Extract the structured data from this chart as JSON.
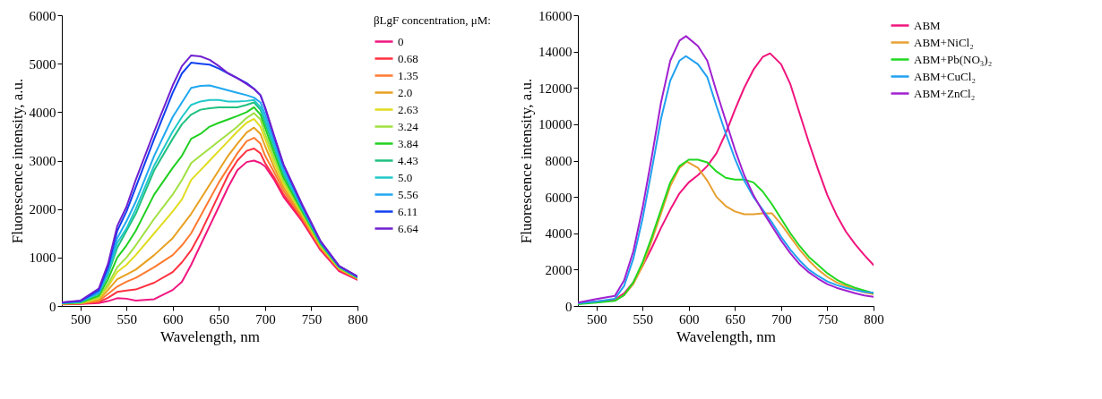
{
  "chart_data": [
    {
      "type": "line",
      "xlabel": "Wavelength, nm",
      "ylabel": "Fluorescence intensity, a.u.",
      "legend_title": "βLgF concentration, μM:",
      "legend": "top right",
      "xlim": [
        480,
        800
      ],
      "ylim": [
        0,
        6000
      ],
      "xticks": [
        500,
        550,
        600,
        650,
        700,
        750,
        800
      ],
      "yticks": [
        0,
        1000,
        2000,
        3000,
        4000,
        5000,
        6000
      ],
      "x": [
        480,
        500,
        520,
        530,
        540,
        550,
        560,
        580,
        600,
        610,
        620,
        630,
        640,
        650,
        660,
        670,
        680,
        688,
        695,
        700,
        710,
        720,
        740,
        760,
        780,
        800
      ],
      "series": [
        {
          "name": "0",
          "color": "#f0157f",
          "values": [
            30,
            40,
            60,
            100,
            160,
            150,
            110,
            140,
            330,
            500,
            850,
            1250,
            1650,
            2050,
            2450,
            2800,
            2970,
            3000,
            2950,
            2880,
            2600,
            2250,
            1750,
            1150,
            720,
            540
          ]
        },
        {
          "name": "0.68",
          "color": "#ff3040",
          "values": [
            35,
            45,
            80,
            170,
            290,
            320,
            340,
            480,
            700,
            900,
            1150,
            1500,
            1900,
            2300,
            2700,
            3000,
            3200,
            3250,
            3150,
            2950,
            2650,
            2300,
            1780,
            1170,
            740,
            550
          ]
        },
        {
          "name": "1.35",
          "color": "#ff7a30",
          "values": [
            40,
            50,
            100,
            250,
            400,
            500,
            580,
            800,
            1050,
            1250,
            1500,
            1850,
            2200,
            2550,
            2850,
            3150,
            3400,
            3470,
            3350,
            3100,
            2750,
            2380,
            1820,
            1200,
            760,
            560
          ]
        },
        {
          "name": "2.0",
          "color": "#e8a020",
          "values": [
            45,
            55,
            130,
            330,
            550,
            650,
            750,
            1050,
            1400,
            1650,
            1900,
            2200,
            2500,
            2800,
            3100,
            3350,
            3580,
            3680,
            3550,
            3300,
            2850,
            2450,
            1860,
            1220,
            770,
            570
          ]
        },
        {
          "name": "2.63",
          "color": "#e0dc20",
          "values": [
            50,
            60,
            160,
            400,
            700,
            850,
            1050,
            1500,
            1950,
            2200,
            2600,
            2800,
            3000,
            3200,
            3400,
            3600,
            3780,
            3860,
            3700,
            3450,
            2950,
            2520,
            1900,
            1240,
            780,
            575
          ]
        },
        {
          "name": "3.24",
          "color": "#a0e040",
          "values": [
            50,
            65,
            180,
            450,
            800,
            1000,
            1250,
            1800,
            2300,
            2600,
            2950,
            3100,
            3250,
            3400,
            3550,
            3700,
            3880,
            3980,
            3850,
            3550,
            3050,
            2580,
            1930,
            1260,
            790,
            580
          ]
        },
        {
          "name": "3.84",
          "color": "#20d020",
          "values": [
            55,
            70,
            210,
            550,
            1000,
            1250,
            1550,
            2300,
            2850,
            3100,
            3450,
            3550,
            3700,
            3780,
            3850,
            3920,
            4000,
            4100,
            3950,
            3680,
            3150,
            2650,
            1960,
            1280,
            800,
            585
          ]
        },
        {
          "name": "4.43",
          "color": "#20c080",
          "values": [
            60,
            80,
            250,
            650,
            1200,
            1550,
            1900,
            2800,
            3450,
            3750,
            3950,
            4050,
            4080,
            4100,
            4100,
            4100,
            4150,
            4200,
            4050,
            3780,
            3250,
            2720,
            2000,
            1300,
            810,
            590
          ]
        },
        {
          "name": "5.0",
          "color": "#20c8c8",
          "values": [
            60,
            85,
            260,
            680,
            1300,
            1600,
            2000,
            2900,
            3600,
            3900,
            4150,
            4220,
            4250,
            4250,
            4220,
            4220,
            4230,
            4250,
            4100,
            3850,
            3300,
            2760,
            2020,
            1310,
            815,
            595
          ]
        },
        {
          "name": "5.56",
          "color": "#20a8f0",
          "values": [
            65,
            90,
            280,
            730,
            1400,
            1750,
            2150,
            3100,
            3900,
            4200,
            4500,
            4540,
            4550,
            4500,
            4450,
            4400,
            4350,
            4300,
            4200,
            3950,
            3380,
            2820,
            2050,
            1320,
            820,
            600
          ]
        },
        {
          "name": "6.11",
          "color": "#1040f0",
          "values": [
            70,
            100,
            320,
            800,
            1550,
            1950,
            2450,
            3450,
            4400,
            4800,
            5020,
            5000,
            4980,
            4900,
            4800,
            4700,
            4600,
            4480,
            4350,
            4080,
            3480,
            2900,
            2080,
            1330,
            825,
            605
          ]
        },
        {
          "name": "6.64",
          "color": "#7020d0",
          "values": [
            75,
            110,
            360,
            870,
            1650,
            2050,
            2600,
            3600,
            4550,
            4950,
            5170,
            5150,
            5080,
            4950,
            4800,
            4700,
            4580,
            4480,
            4350,
            4100,
            3500,
            2920,
            2100,
            1340,
            830,
            610
          ]
        }
      ]
    },
    {
      "type": "line",
      "xlabel": "Wavelength, nm",
      "ylabel": "Fluorescence intensity, a.u.",
      "legend": "top right",
      "xlim": [
        480,
        800
      ],
      "ylim": [
        0,
        16000
      ],
      "xticks": [
        500,
        550,
        600,
        650,
        700,
        750,
        800
      ],
      "yticks": [
        0,
        2000,
        4000,
        6000,
        8000,
        10000,
        12000,
        14000,
        16000
      ],
      "series": [
        {
          "name": "ABM",
          "color": "#f0147c",
          "x": [
            480,
            500,
            520,
            530,
            540,
            550,
            560,
            570,
            580,
            590,
            600,
            610,
            620,
            630,
            640,
            650,
            660,
            670,
            680,
            688,
            700,
            710,
            720,
            730,
            740,
            750,
            760,
            770,
            780,
            790,
            800
          ],
          "values": [
            150,
            250,
            350,
            700,
            1300,
            2200,
            3200,
            4300,
            5300,
            6200,
            6800,
            7200,
            7700,
            8400,
            9500,
            10800,
            12000,
            13000,
            13700,
            13900,
            13300,
            12200,
            10600,
            9000,
            7500,
            6100,
            5000,
            4100,
            3400,
            2800,
            2250
          ]
        },
        {
          "name": "ABM+NiCl₂",
          "color": "#e8a030",
          "x": [
            520,
            530,
            540,
            550,
            560,
            570,
            580,
            590,
            598,
            610,
            620,
            630,
            640,
            650,
            660,
            670,
            680,
            690,
            700,
            710,
            720,
            730,
            740,
            750,
            760,
            770,
            780,
            790,
            800
          ],
          "values": [
            300,
            600,
            1200,
            2200,
            3600,
            5100,
            6600,
            7600,
            7950,
            7600,
            6900,
            6000,
            5500,
            5200,
            5050,
            5050,
            5100,
            5100,
            4500,
            3800,
            3100,
            2500,
            2000,
            1600,
            1300,
            1100,
            900,
            750,
            650
          ]
        },
        {
          "name": "ABM+Pb(NO₃)₂",
          "color": "#20d820",
          "x": [
            480,
            500,
            520,
            530,
            540,
            550,
            560,
            570,
            580,
            590,
            600,
            610,
            620,
            630,
            640,
            650,
            660,
            670,
            680,
            690,
            700,
            710,
            720,
            730,
            740,
            750,
            760,
            770,
            780,
            790,
            800
          ],
          "values": [
            100,
            180,
            280,
            600,
            1300,
            2400,
            3800,
            5300,
            6800,
            7700,
            8050,
            8050,
            7900,
            7400,
            7050,
            6950,
            6950,
            6800,
            6300,
            5600,
            4800,
            4000,
            3300,
            2700,
            2250,
            1800,
            1450,
            1200,
            1000,
            850,
            700
          ]
        },
        {
          "name": "ABM+CuCl₂",
          "color": "#20a0f0",
          "x": [
            480,
            500,
            520,
            530,
            540,
            550,
            560,
            570,
            580,
            590,
            597,
            610,
            620,
            630,
            640,
            650,
            660,
            670,
            680,
            690,
            700,
            710,
            720,
            730,
            740,
            750,
            760,
            770,
            780,
            790,
            800
          ],
          "values": [
            150,
            250,
            400,
            1100,
            2600,
            4800,
            7500,
            10300,
            12400,
            13500,
            13750,
            13300,
            12600,
            11000,
            9500,
            8100,
            6900,
            6000,
            5300,
            4600,
            3800,
            3100,
            2500,
            2000,
            1650,
            1350,
            1150,
            1000,
            880,
            780,
            720
          ]
        },
        {
          "name": "ABM+ZnCl₂",
          "color": "#a020d0",
          "x": [
            480,
            500,
            520,
            530,
            540,
            550,
            560,
            570,
            580,
            590,
            597,
            610,
            620,
            630,
            640,
            650,
            660,
            670,
            680,
            690,
            700,
            710,
            720,
            730,
            740,
            750,
            760,
            770,
            780,
            790,
            800
          ],
          "values": [
            180,
            380,
            550,
            1400,
            3000,
            5400,
            8200,
            11200,
            13500,
            14600,
            14850,
            14300,
            13500,
            11800,
            10200,
            8600,
            7200,
            6100,
            5200,
            4400,
            3600,
            2900,
            2300,
            1850,
            1500,
            1200,
            1000,
            850,
            700,
            580,
            500
          ]
        }
      ]
    }
  ]
}
